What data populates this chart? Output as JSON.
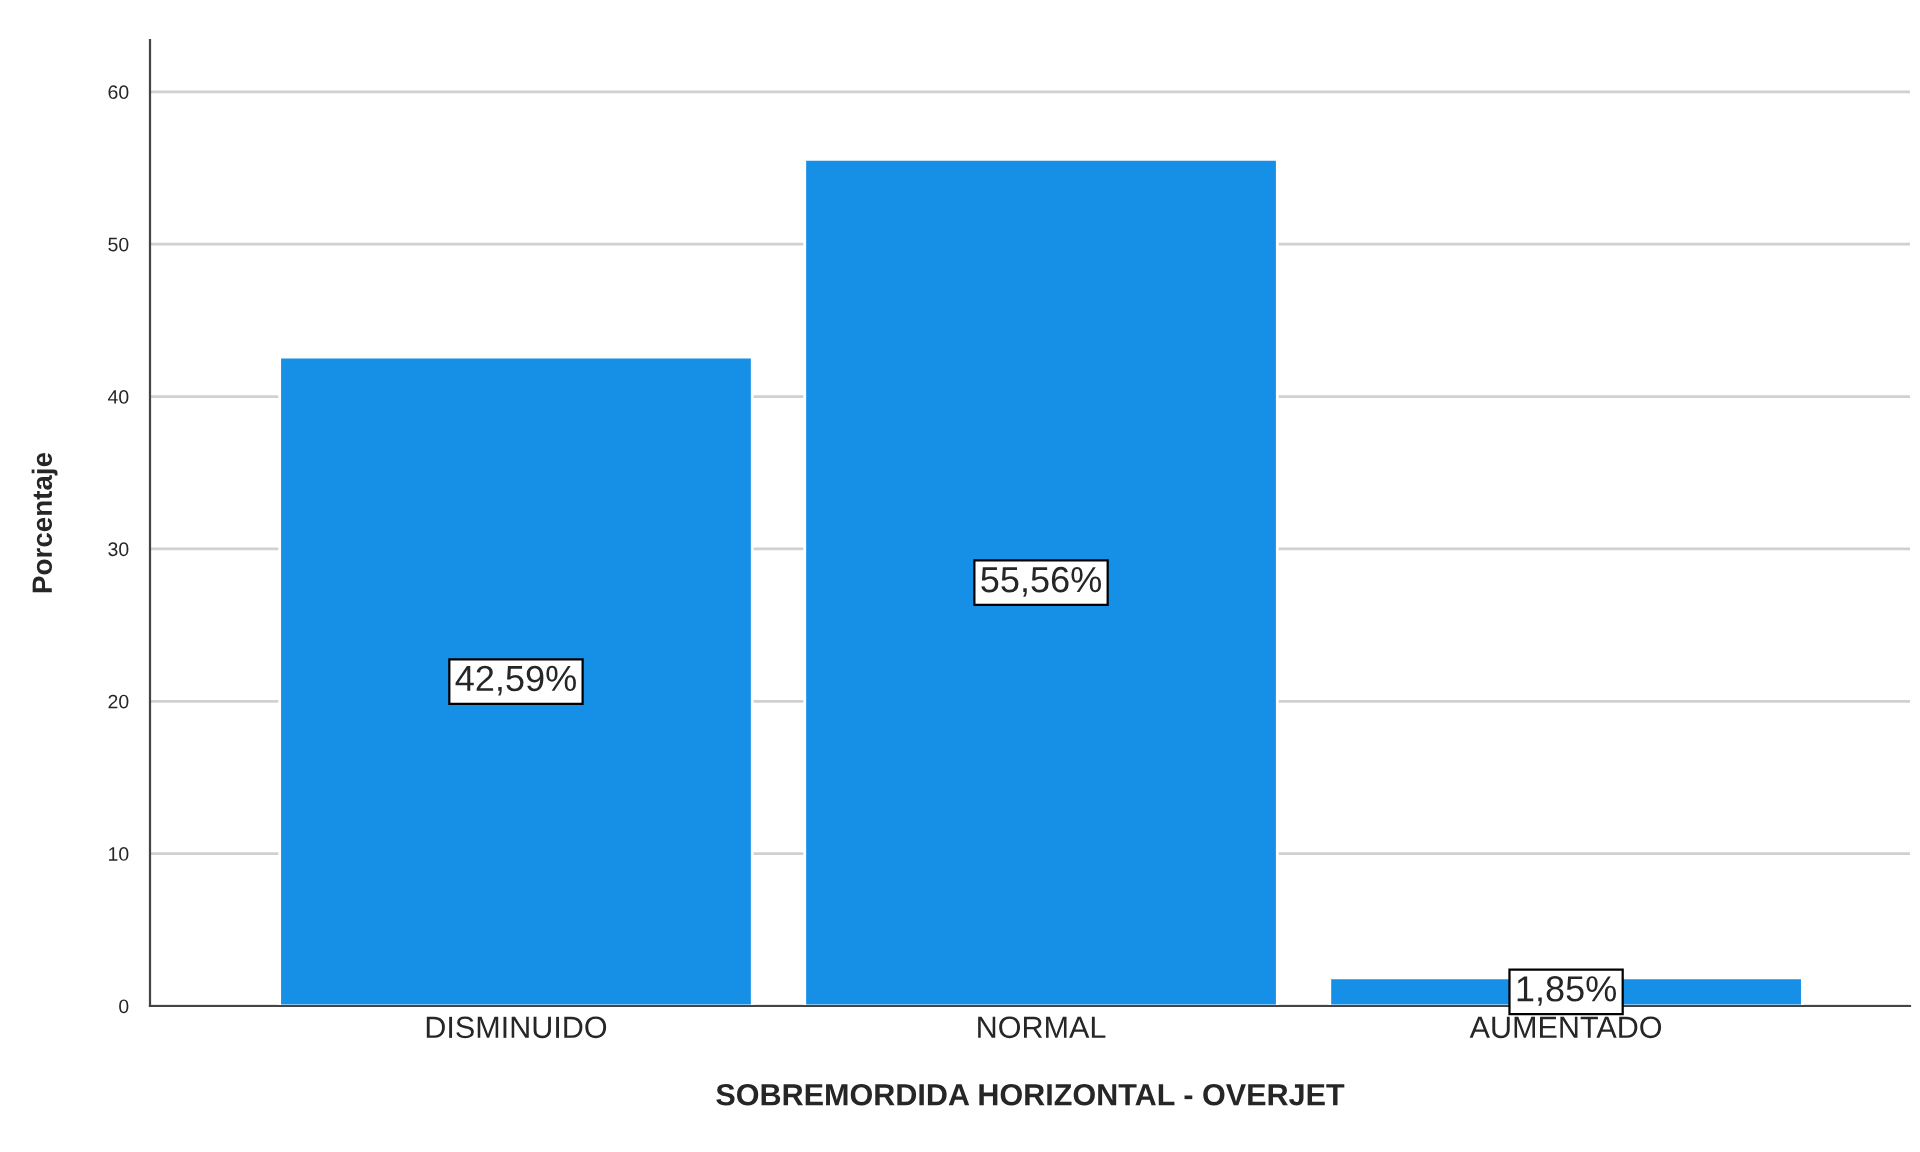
{
  "chart_data": {
    "type": "bar",
    "xlabel": "SOBREMORDIDA HORIZONTAL - OVERJET",
    "ylabel": "Porcentaje",
    "categories": [
      "DISMINUIDO",
      "NORMAL",
      "AUMENTADO"
    ],
    "values": [
      42.59,
      55.56,
      1.85
    ],
    "value_labels": [
      "42,59%",
      "55,56%",
      "1,85%"
    ],
    "color": "#1590e6",
    "ylim": [
      0,
      63.4
    ],
    "yticks": [
      0,
      10,
      20,
      30,
      40,
      50,
      60
    ],
    "grid": "y"
  }
}
